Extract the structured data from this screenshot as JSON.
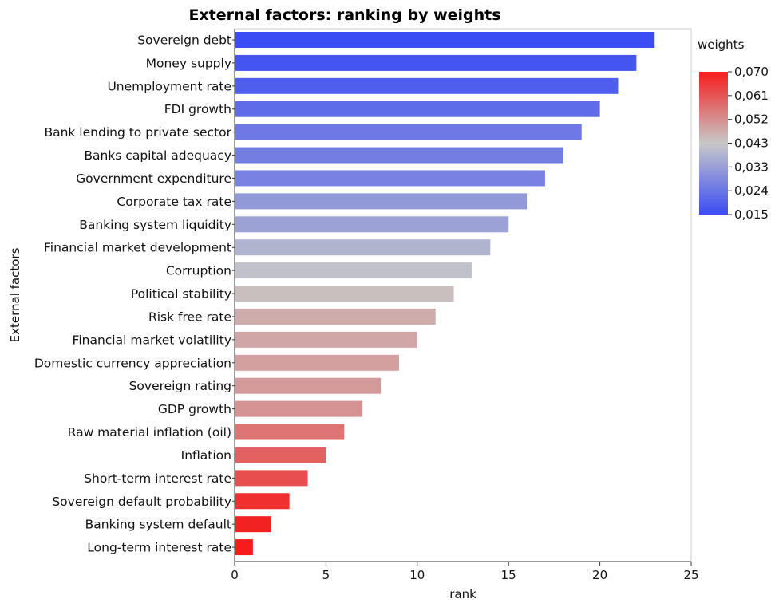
{
  "chart_data": {
    "type": "bar",
    "orientation": "horizontal",
    "title": "External factors: ranking by weights",
    "xlabel": "rank",
    "ylabel": "External factors",
    "xlim": [
      0,
      25
    ],
    "xticks": [
      "0",
      "5",
      "10",
      "15",
      "20",
      "25"
    ],
    "grid": false,
    "legend_placement": "right",
    "categories": [
      "Sovereign debt",
      "Money supply",
      "Unemployment rate",
      "FDI  growth",
      "Bank lending to private sector",
      "Banks capital adequacy",
      "Government expenditure",
      "Corporate tax rate",
      "Banking system liquidity",
      "Financial market development",
      "Corruption",
      "Political stability",
      "Risk free rate",
      "Financial market volatility",
      "Domestic currency appreciation",
      "Sovereign rating",
      "GDP growth",
      "Raw material inflation (oil)",
      "Inflation",
      "Short-term interest rate",
      "Sovereign default probability",
      "Banking system default",
      "Long-term interest rate"
    ],
    "values": [
      23,
      22,
      21,
      20,
      19,
      18,
      17,
      16,
      15,
      14,
      13,
      12,
      11,
      10,
      9,
      8,
      7,
      6,
      5,
      4,
      3,
      2,
      1
    ],
    "color_values": [
      0.015,
      0.017,
      0.019,
      0.022,
      0.025,
      0.026,
      0.027,
      0.032,
      0.034,
      0.038,
      0.041,
      0.044,
      0.047,
      0.048,
      0.049,
      0.05,
      0.051,
      0.056,
      0.059,
      0.062,
      0.067,
      0.069,
      0.07
    ],
    "colorbar": {
      "title": "weights",
      "min": 0.015,
      "max": 0.07,
      "ticks": [
        "0,070",
        "0,061",
        "0,052",
        "0,043",
        "0,033",
        "0,024",
        "0,015"
      ],
      "colors": {
        "low": "#3b4cf5",
        "mid": "#c8c8c8",
        "high": "#f51c1c"
      }
    }
  }
}
